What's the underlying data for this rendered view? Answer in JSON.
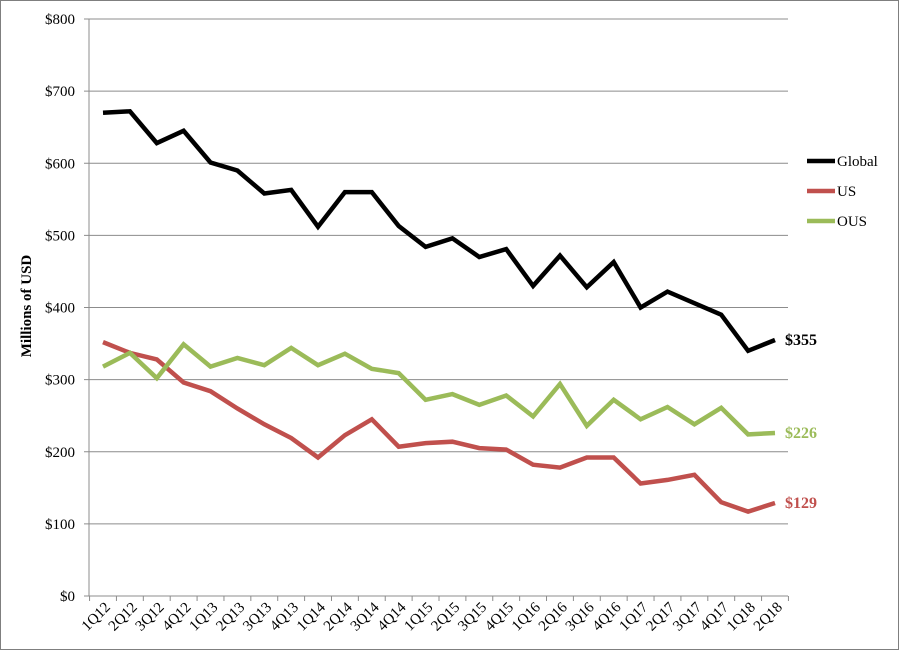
{
  "chart_data": {
    "type": "line",
    "title": "",
    "xlabel": "",
    "ylabel": "Millions of USD",
    "ylim": [
      0,
      800
    ],
    "y_ticks": [
      "$0",
      "$100",
      "$200",
      "$300",
      "$400",
      "$500",
      "$600",
      "$700",
      "$800"
    ],
    "y_tick_values": [
      0,
      100,
      200,
      300,
      400,
      500,
      600,
      700,
      800
    ],
    "grid": true,
    "legend_position": "right",
    "categories": [
      "1Q12",
      "2Q12",
      "3Q12",
      "4Q12",
      "1Q13",
      "2Q13",
      "3Q13",
      "4Q13",
      "1Q14",
      "2Q14",
      "3Q14",
      "4Q14",
      "1Q15",
      "2Q15",
      "3Q15",
      "4Q15",
      "1Q16",
      "2Q16",
      "3Q16",
      "4Q16",
      "1Q17",
      "2Q17",
      "3Q17",
      "4Q17",
      "1Q18",
      "2Q18"
    ],
    "series": [
      {
        "name": "Global",
        "color": "#000000",
        "values": [
          670,
          672,
          628,
          645,
          601,
          590,
          558,
          563,
          512,
          560,
          560,
          513,
          484,
          496,
          470,
          481,
          430,
          472,
          428,
          463,
          400,
          422,
          406,
          390,
          340,
          355
        ],
        "end_label": "$355"
      },
      {
        "name": "US",
        "color": "#c0504d",
        "values": [
          352,
          337,
          328,
          296,
          284,
          260,
          238,
          219,
          192,
          223,
          245,
          207,
          212,
          214,
          205,
          203,
          182,
          178,
          192,
          192,
          156,
          161,
          168,
          130,
          117,
          129
        ],
        "end_label": "$129"
      },
      {
        "name": "OUS",
        "color": "#9bbb59",
        "values": [
          318,
          337,
          302,
          349,
          318,
          330,
          320,
          344,
          320,
          336,
          315,
          309,
          272,
          280,
          265,
          278,
          249,
          294,
          236,
          272,
          245,
          262,
          238,
          261,
          224,
          226
        ],
        "end_label": "$226"
      }
    ]
  }
}
